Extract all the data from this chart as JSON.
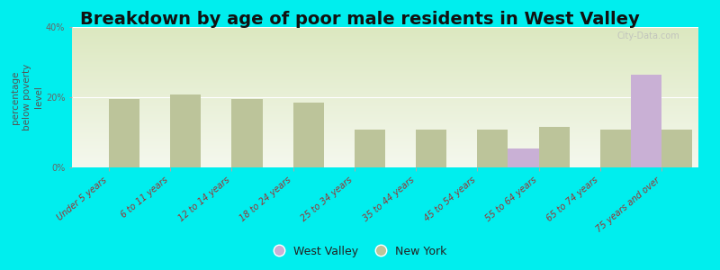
{
  "title": "Breakdown by age of poor male residents in West Valley",
  "ylabel": "percentage\nbelow poverty\nlevel",
  "categories": [
    "Under 5 years",
    "6 to 11 years",
    "12 to 14 years",
    "18 to 24 years",
    "25 to 34 years",
    "35 to 44 years",
    "45 to 54 years",
    "55 to 64 years",
    "65 to 74 years",
    "75 years and over"
  ],
  "west_valley": [
    0,
    0,
    0,
    0,
    0,
    0,
    0,
    5.5,
    0,
    26.5
  ],
  "new_york": [
    19.5,
    20.8,
    19.5,
    18.5,
    10.8,
    10.8,
    10.8,
    11.5,
    10.8,
    10.8
  ],
  "west_valley_color": "#c9b0d5",
  "new_york_color": "#bcc49a",
  "background_color": "#00eeee",
  "grad_top": "#dce8c0",
  "grad_bottom": "#f5f8ee",
  "ylim": [
    0,
    40
  ],
  "yticks": [
    0,
    20,
    40
  ],
  "ytick_labels": [
    "0%",
    "20%",
    "40%"
  ],
  "bar_width": 0.5,
  "title_fontsize": 14,
  "axis_label_fontsize": 7.5,
  "tick_label_fontsize": 7,
  "legend_fontsize": 9,
  "watermark": "City-Data.com"
}
